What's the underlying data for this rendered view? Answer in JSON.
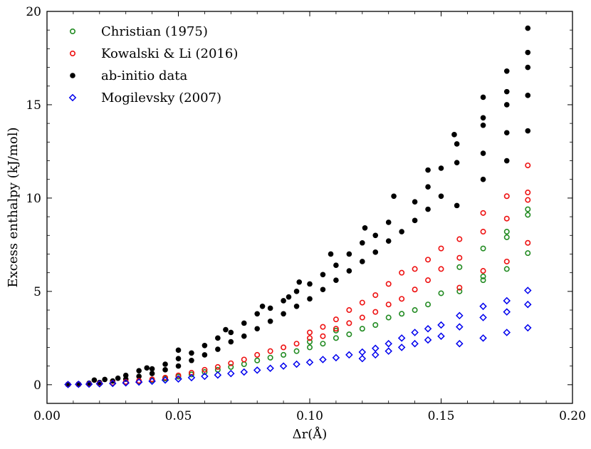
{
  "chart_data": {
    "type": "scatter",
    "title": "",
    "xlabel": "Δr(Å)",
    "ylabel": "Excess enthalpy (kJ/mol)",
    "xlim": [
      0.0,
      0.2
    ],
    "ylim": [
      -1,
      20
    ],
    "xticks": [
      0.0,
      0.05,
      0.1,
      0.15,
      0.2
    ],
    "xtick_labels": [
      "0.00",
      "0.05",
      "0.10",
      "0.15",
      "0.20"
    ],
    "yticks": [
      0,
      5,
      10,
      15,
      20
    ],
    "ytick_labels": [
      "0",
      "5",
      "10",
      "15",
      "20"
    ],
    "legend_position": "top-left",
    "series": [
      {
        "name": "Christian (1975)",
        "marker": "open-circle",
        "color": "#228b22",
        "points": [
          [
            0.008,
            0.01
          ],
          [
            0.012,
            0.02
          ],
          [
            0.016,
            0.04
          ],
          [
            0.02,
            0.06
          ],
          [
            0.025,
            0.09
          ],
          [
            0.03,
            0.13
          ],
          [
            0.035,
            0.18
          ],
          [
            0.04,
            0.25
          ],
          [
            0.045,
            0.33
          ],
          [
            0.05,
            0.43
          ],
          [
            0.055,
            0.55
          ],
          [
            0.06,
            0.68
          ],
          [
            0.065,
            0.8
          ],
          [
            0.07,
            0.95
          ],
          [
            0.075,
            1.1
          ],
          [
            0.08,
            1.3
          ],
          [
            0.085,
            1.45
          ],
          [
            0.09,
            1.6
          ],
          [
            0.095,
            1.8
          ],
          [
            0.1,
            2.0
          ],
          [
            0.1,
            2.3
          ],
          [
            0.105,
            2.2
          ],
          [
            0.11,
            2.5
          ],
          [
            0.11,
            2.9
          ],
          [
            0.115,
            2.7
          ],
          [
            0.12,
            3.0
          ],
          [
            0.125,
            3.2
          ],
          [
            0.13,
            3.6
          ],
          [
            0.135,
            3.8
          ],
          [
            0.14,
            4.0
          ],
          [
            0.145,
            4.3
          ],
          [
            0.15,
            4.9
          ],
          [
            0.157,
            5.0
          ],
          [
            0.157,
            6.3
          ],
          [
            0.166,
            5.6
          ],
          [
            0.166,
            5.8
          ],
          [
            0.166,
            7.3
          ],
          [
            0.175,
            6.2
          ],
          [
            0.175,
            7.9
          ],
          [
            0.175,
            8.2
          ],
          [
            0.183,
            7.05
          ],
          [
            0.183,
            9.1
          ],
          [
            0.183,
            9.4
          ]
        ]
      },
      {
        "name": "Kowalski & Li (2016)",
        "marker": "open-circle",
        "color": "#ee1111",
        "points": [
          [
            0.008,
            0.01
          ],
          [
            0.012,
            0.02
          ],
          [
            0.016,
            0.04
          ],
          [
            0.02,
            0.07
          ],
          [
            0.025,
            0.1
          ],
          [
            0.03,
            0.15
          ],
          [
            0.035,
            0.21
          ],
          [
            0.04,
            0.29
          ],
          [
            0.045,
            0.38
          ],
          [
            0.05,
            0.5
          ],
          [
            0.055,
            0.64
          ],
          [
            0.06,
            0.8
          ],
          [
            0.065,
            0.95
          ],
          [
            0.07,
            1.15
          ],
          [
            0.075,
            1.35
          ],
          [
            0.08,
            1.6
          ],
          [
            0.085,
            1.8
          ],
          [
            0.09,
            2.0
          ],
          [
            0.095,
            2.2
          ],
          [
            0.1,
            2.5
          ],
          [
            0.1,
            2.8
          ],
          [
            0.105,
            2.6
          ],
          [
            0.105,
            3.1
          ],
          [
            0.11,
            3.0
          ],
          [
            0.11,
            3.5
          ],
          [
            0.115,
            3.3
          ],
          [
            0.115,
            4.0
          ],
          [
            0.12,
            3.6
          ],
          [
            0.12,
            4.4
          ],
          [
            0.125,
            3.9
          ],
          [
            0.125,
            4.8
          ],
          [
            0.13,
            4.3
          ],
          [
            0.13,
            5.4
          ],
          [
            0.135,
            4.6
          ],
          [
            0.135,
            6.0
          ],
          [
            0.14,
            5.1
          ],
          [
            0.14,
            6.2
          ],
          [
            0.145,
            5.6
          ],
          [
            0.145,
            6.7
          ],
          [
            0.15,
            6.2
          ],
          [
            0.15,
            7.3
          ],
          [
            0.157,
            5.2
          ],
          [
            0.157,
            6.8
          ],
          [
            0.157,
            7.8
          ],
          [
            0.166,
            6.1
          ],
          [
            0.166,
            8.2
          ],
          [
            0.166,
            9.2
          ],
          [
            0.175,
            6.6
          ],
          [
            0.175,
            8.9
          ],
          [
            0.175,
            10.1
          ],
          [
            0.183,
            7.6
          ],
          [
            0.183,
            9.9
          ],
          [
            0.183,
            10.3
          ],
          [
            0.183,
            11.75
          ]
        ]
      },
      {
        "name": "ab-initio data",
        "marker": "filled-circle",
        "color": "#000000",
        "points": [
          [
            0.008,
            0.02
          ],
          [
            0.012,
            0.04
          ],
          [
            0.016,
            0.08
          ],
          [
            0.018,
            0.25
          ],
          [
            0.02,
            0.12
          ],
          [
            0.022,
            0.28
          ],
          [
            0.025,
            0.2
          ],
          [
            0.027,
            0.35
          ],
          [
            0.03,
            0.3
          ],
          [
            0.03,
            0.5
          ],
          [
            0.035,
            0.45
          ],
          [
            0.035,
            0.75
          ],
          [
            0.038,
            0.9
          ],
          [
            0.04,
            0.6
          ],
          [
            0.04,
            0.85
          ],
          [
            0.045,
            0.8
          ],
          [
            0.045,
            1.1
          ],
          [
            0.05,
            1.0
          ],
          [
            0.05,
            1.4
          ],
          [
            0.05,
            1.85
          ],
          [
            0.055,
            1.3
          ],
          [
            0.055,
            1.7
          ],
          [
            0.06,
            1.6
          ],
          [
            0.06,
            2.1
          ],
          [
            0.065,
            1.9
          ],
          [
            0.065,
            2.5
          ],
          [
            0.068,
            2.95
          ],
          [
            0.07,
            2.3
          ],
          [
            0.07,
            2.8
          ],
          [
            0.075,
            2.6
          ],
          [
            0.075,
            3.3
          ],
          [
            0.08,
            3.0
          ],
          [
            0.08,
            3.8
          ],
          [
            0.082,
            4.2
          ],
          [
            0.085,
            3.4
          ],
          [
            0.085,
            4.1
          ],
          [
            0.09,
            3.8
          ],
          [
            0.09,
            4.5
          ],
          [
            0.092,
            4.7
          ],
          [
            0.095,
            4.2
          ],
          [
            0.095,
            5.0
          ],
          [
            0.096,
            5.5
          ],
          [
            0.1,
            4.6
          ],
          [
            0.1,
            5.4
          ],
          [
            0.105,
            5.1
          ],
          [
            0.105,
            5.9
          ],
          [
            0.108,
            7.0
          ],
          [
            0.11,
            5.6
          ],
          [
            0.11,
            6.4
          ],
          [
            0.115,
            6.1
          ],
          [
            0.115,
            7.0
          ],
          [
            0.12,
            6.6
          ],
          [
            0.12,
            7.6
          ],
          [
            0.121,
            8.4
          ],
          [
            0.125,
            7.1
          ],
          [
            0.125,
            8.0
          ],
          [
            0.13,
            7.7
          ],
          [
            0.13,
            8.7
          ],
          [
            0.132,
            10.1
          ],
          [
            0.135,
            8.2
          ],
          [
            0.14,
            8.8
          ],
          [
            0.14,
            9.8
          ],
          [
            0.145,
            9.4
          ],
          [
            0.145,
            10.6
          ],
          [
            0.145,
            11.5
          ],
          [
            0.15,
            10.1
          ],
          [
            0.15,
            11.6
          ],
          [
            0.156,
            9.6
          ],
          [
            0.156,
            11.9
          ],
          [
            0.156,
            12.9
          ],
          [
            0.155,
            13.4
          ],
          [
            0.166,
            11.0
          ],
          [
            0.166,
            12.4
          ],
          [
            0.166,
            13.9
          ],
          [
            0.166,
            14.3
          ],
          [
            0.166,
            15.4
          ],
          [
            0.175,
            12.0
          ],
          [
            0.175,
            13.5
          ],
          [
            0.175,
            15.0
          ],
          [
            0.175,
            15.7
          ],
          [
            0.175,
            16.8
          ],
          [
            0.183,
            13.6
          ],
          [
            0.183,
            15.5
          ],
          [
            0.183,
            17.0
          ],
          [
            0.183,
            17.8
          ],
          [
            0.183,
            19.1
          ]
        ]
      },
      {
        "name": "Mogilevsky (2007)",
        "marker": "open-diamond",
        "color": "#0000ee",
        "points": [
          [
            0.008,
            0.01
          ],
          [
            0.012,
            0.02
          ],
          [
            0.016,
            0.03
          ],
          [
            0.02,
            0.05
          ],
          [
            0.025,
            0.07
          ],
          [
            0.03,
            0.1
          ],
          [
            0.035,
            0.14
          ],
          [
            0.04,
            0.19
          ],
          [
            0.045,
            0.25
          ],
          [
            0.05,
            0.31
          ],
          [
            0.055,
            0.38
          ],
          [
            0.06,
            0.45
          ],
          [
            0.065,
            0.52
          ],
          [
            0.07,
            0.6
          ],
          [
            0.075,
            0.68
          ],
          [
            0.08,
            0.78
          ],
          [
            0.085,
            0.88
          ],
          [
            0.09,
            1.0
          ],
          [
            0.095,
            1.1
          ],
          [
            0.1,
            1.2
          ],
          [
            0.105,
            1.35
          ],
          [
            0.11,
            1.45
          ],
          [
            0.115,
            1.6
          ],
          [
            0.12,
            1.4
          ],
          [
            0.12,
            1.75
          ],
          [
            0.125,
            1.6
          ],
          [
            0.125,
            1.95
          ],
          [
            0.13,
            1.8
          ],
          [
            0.13,
            2.2
          ],
          [
            0.135,
            2.0
          ],
          [
            0.135,
            2.5
          ],
          [
            0.14,
            2.2
          ],
          [
            0.14,
            2.8
          ],
          [
            0.145,
            2.4
          ],
          [
            0.145,
            3.0
          ],
          [
            0.15,
            2.6
          ],
          [
            0.15,
            3.2
          ],
          [
            0.157,
            2.2
          ],
          [
            0.157,
            3.1
          ],
          [
            0.157,
            3.7
          ],
          [
            0.166,
            2.5
          ],
          [
            0.166,
            3.6
          ],
          [
            0.166,
            4.2
          ],
          [
            0.175,
            2.8
          ],
          [
            0.175,
            3.9
          ],
          [
            0.175,
            4.5
          ],
          [
            0.183,
            3.05
          ],
          [
            0.183,
            4.3
          ],
          [
            0.183,
            5.05
          ]
        ]
      }
    ]
  }
}
